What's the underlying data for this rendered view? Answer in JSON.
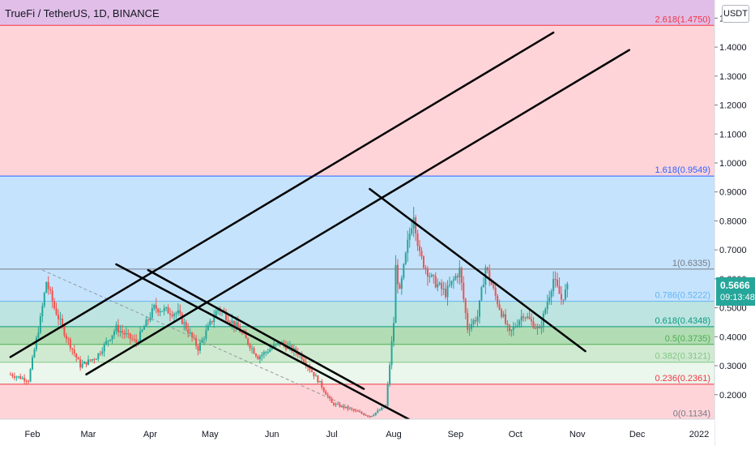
{
  "title": "TrueFi / TetherUS, 1D, BINANCE",
  "currency_button": "USDT",
  "last_price": "0.5666",
  "countdown": "09:13:48",
  "colors": {
    "up": "#26a69a",
    "down": "#ef5350",
    "badge": "#26a69a"
  },
  "chart_data": {
    "type": "candlestick",
    "x_axis": {
      "ticks": [
        "Feb",
        "Mar",
        "Apr",
        "May",
        "Jun",
        "Jul",
        "Aug",
        "Sep",
        "Oct",
        "Nov",
        "Dec",
        "2022"
      ]
    },
    "y_axis": {
      "ticks": [
        "0.2000",
        "0.3000",
        "0.4000",
        "0.5000",
        "0.6000",
        "0.7000",
        "0.8000",
        "0.9000",
        "1.0000",
        "1.1000",
        "1.2000",
        "1.3000",
        "1.4000",
        "1.5000"
      ]
    },
    "fibonacci": [
      {
        "label": "0(0.1134)",
        "value": 0.1134,
        "color": "#787b86"
      },
      {
        "label": "0.236(0.2361)",
        "value": 0.2361,
        "color": "#f23645"
      },
      {
        "label": "0.382(0.3121)",
        "value": 0.3121,
        "color": "#81c784"
      },
      {
        "label": "0.5(0.3735)",
        "value": 0.3735,
        "color": "#4caf50"
      },
      {
        "label": "0.618(0.4348)",
        "value": 0.4348,
        "color": "#089981"
      },
      {
        "label": "0.786(0.5222)",
        "value": 0.5222,
        "color": "#64b5f6"
      },
      {
        "label": "1(0.6335)",
        "value": 0.6335,
        "color": "#787b86"
      },
      {
        "label": "1.618(0.9549)",
        "value": 0.9549,
        "color": "#2962ff"
      },
      {
        "label": "2.618(1.4750)",
        "value": 1.475,
        "color": "#f23645"
      }
    ],
    "zone_colors": {
      "0-0.236": "#ffcdd2",
      "0.236-0.382": "#e8f5e9",
      "0.382-0.5": "#c8e6c9",
      "0.5-0.618": "#a5d6a7",
      "0.618-0.786": "#b2dfdb",
      "0.786-1": "#bbdefb",
      "1-1.618": "#bbdefb",
      "1.618-2.618": "#ffcdd2",
      "above": "#e1bee7"
    },
    "series": [
      {
        "date": "2021-01-21",
        "close": 0.27
      },
      {
        "date": "2021-01-30",
        "close": 0.25
      },
      {
        "date": "2021-02-05",
        "close": 0.46
      },
      {
        "date": "2021-02-08",
        "close": 0.59
      },
      {
        "date": "2021-02-12",
        "close": 0.5
      },
      {
        "date": "2021-02-18",
        "close": 0.4
      },
      {
        "date": "2021-02-25",
        "close": 0.3
      },
      {
        "date": "2021-03-05",
        "close": 0.33
      },
      {
        "date": "2021-03-15",
        "close": 0.43
      },
      {
        "date": "2021-03-25",
        "close": 0.38
      },
      {
        "date": "2021-04-03",
        "close": 0.5
      },
      {
        "date": "2021-04-15",
        "close": 0.48
      },
      {
        "date": "2021-04-25",
        "close": 0.36
      },
      {
        "date": "2021-05-05",
        "close": 0.5
      },
      {
        "date": "2021-05-15",
        "close": 0.43
      },
      {
        "date": "2021-05-25",
        "close": 0.33
      },
      {
        "date": "2021-06-05",
        "close": 0.38
      },
      {
        "date": "2021-06-15",
        "close": 0.34
      },
      {
        "date": "2021-06-25",
        "close": 0.24
      },
      {
        "date": "2021-07-01",
        "close": 0.17
      },
      {
        "date": "2021-07-10",
        "close": 0.15
      },
      {
        "date": "2021-07-20",
        "close": 0.125
      },
      {
        "date": "2021-07-28",
        "close": 0.16
      },
      {
        "date": "2021-08-01",
        "close": 0.45
      },
      {
        "date": "2021-08-02",
        "close": 0.64
      },
      {
        "date": "2021-08-04",
        "close": 0.55
      },
      {
        "date": "2021-08-08",
        "close": 0.72
      },
      {
        "date": "2021-08-11",
        "close": 0.83
      },
      {
        "date": "2021-08-14",
        "close": 0.68
      },
      {
        "date": "2021-08-20",
        "close": 0.6
      },
      {
        "date": "2021-08-27",
        "close": 0.55
      },
      {
        "date": "2021-09-03",
        "close": 0.63
      },
      {
        "date": "2021-09-07",
        "close": 0.43
      },
      {
        "date": "2021-09-12",
        "close": 0.47
      },
      {
        "date": "2021-09-16",
        "close": 0.64
      },
      {
        "date": "2021-09-22",
        "close": 0.52
      },
      {
        "date": "2021-09-28",
        "close": 0.41
      },
      {
        "date": "2021-10-05",
        "close": 0.48
      },
      {
        "date": "2021-10-13",
        "close": 0.42
      },
      {
        "date": "2021-10-20",
        "close": 0.6
      },
      {
        "date": "2021-10-24",
        "close": 0.53
      },
      {
        "date": "2021-10-27",
        "close": 0.5666
      }
    ],
    "trendlines": [
      {
        "name": "upper-channel",
        "from": [
          "2021-01-21",
          0.33
        ],
        "to": [
          "2021-10-20",
          1.45
        ]
      },
      {
        "name": "lower-channel",
        "from": [
          "2021-02-28",
          0.27
        ],
        "to": [
          "2021-11-27",
          1.39
        ]
      },
      {
        "name": "descending-1",
        "from": [
          "2021-03-31",
          0.63
        ],
        "to": [
          "2021-07-17",
          0.22
        ]
      },
      {
        "name": "descending-2",
        "from": [
          "2021-03-15",
          0.65
        ],
        "to": [
          "2021-08-10",
          0.11
        ]
      },
      {
        "name": "descending-3",
        "from": [
          "2021-07-20",
          0.91
        ],
        "to": [
          "2021-11-05",
          0.35
        ]
      }
    ]
  }
}
